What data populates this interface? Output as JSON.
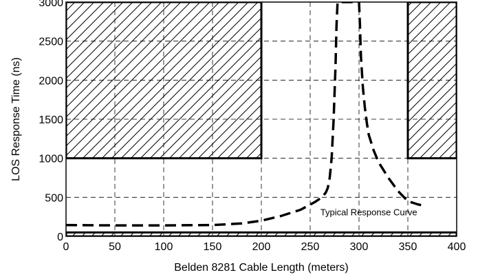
{
  "chart_data": {
    "type": "line",
    "title": "",
    "xlabel": "Belden 8281 Cable Length (meters)",
    "ylabel": "LOS Response Time (ns)",
    "xlim": [
      0,
      400
    ],
    "ylim": [
      0,
      3000
    ],
    "x_ticks": [
      0,
      50,
      100,
      150,
      200,
      250,
      300,
      350,
      400
    ],
    "x_tick_labels": [
      "0",
      "50",
      "100",
      "150",
      "200",
      "250",
      "300",
      "350",
      "400"
    ],
    "y_ticks": [
      0,
      500,
      1000,
      1500,
      2000,
      2500,
      3000
    ],
    "y_tick_labels": [
      "0",
      "500",
      "1000",
      "1500",
      "2000",
      "2500",
      "3000"
    ],
    "grid": true,
    "series": [
      {
        "name": "Typical Response Curve",
        "style": "dashed",
        "color": "#000000",
        "x": [
          0,
          50,
          100,
          150,
          180,
          200,
          220,
          240,
          255,
          262,
          266,
          268,
          270,
          272,
          274,
          276,
          277,
          278,
          300,
          301,
          302,
          304,
          306,
          308,
          310,
          315,
          320,
          330,
          340,
          350,
          360,
          365
        ],
        "y": [
          145,
          140,
          140,
          145,
          165,
          200,
          260,
          340,
          440,
          500,
          560,
          620,
          750,
          1000,
          1500,
          2200,
          2700,
          3000,
          3000,
          2700,
          2300,
          1900,
          1650,
          1450,
          1300,
          1100,
          950,
          750,
          580,
          450,
          410,
          395
        ]
      }
    ],
    "regions": [
      {
        "kind": "hatched-box",
        "x": [
          0,
          200
        ],
        "y": [
          1000,
          3000
        ]
      },
      {
        "kind": "hatched-box",
        "x": [
          350,
          400
        ],
        "y": [
          1000,
          3000
        ]
      },
      {
        "kind": "hatched-box",
        "x": [
          0,
          400
        ],
        "y": [
          0,
          50
        ]
      }
    ],
    "annotations": [
      {
        "text": "Typical Response Curve",
        "x": 310,
        "y": 270
      }
    ]
  }
}
